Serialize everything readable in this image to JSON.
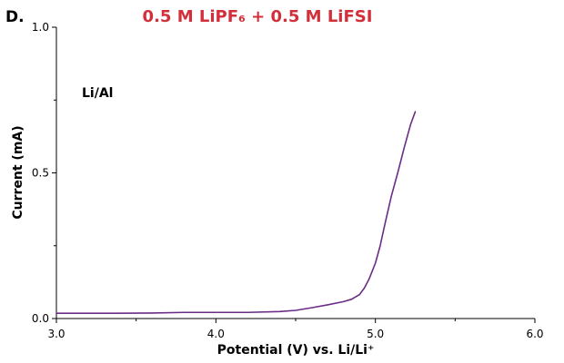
{
  "panel_label": "D.",
  "colors": {
    "title": "#d32f3a",
    "curve": "#6b2c86",
    "axis": "#000000"
  },
  "chart_data": {
    "type": "line",
    "title": "0.5 M LiPF₆ + 0.5 M LiFSI",
    "xlabel": "Potential (V) vs. Li/Li⁺",
    "ylabel": "Current (mA)",
    "xlim": [
      3.0,
      6.0
    ],
    "ylim": [
      0.0,
      1.0
    ],
    "x_ticks": [
      3.0,
      4.0,
      5.0,
      6.0
    ],
    "x_tick_labels": [
      "3.0",
      "4.0",
      "5.0",
      "6.0"
    ],
    "y_ticks": [
      0.0,
      0.5,
      1.0
    ],
    "y_tick_labels": [
      "0.0",
      "0.5",
      "1.0"
    ],
    "annotation": "Li/Al",
    "grid": false,
    "series": [
      {
        "x": [
          3.0,
          3.3,
          3.6,
          3.8,
          4.0,
          4.2,
          4.4,
          4.5,
          4.6,
          4.7,
          4.8,
          4.85,
          4.9,
          4.93,
          4.96,
          5.0,
          5.03,
          5.06,
          5.1,
          5.14,
          5.18,
          5.22,
          5.25
        ],
        "y": [
          0.018,
          0.018,
          0.019,
          0.021,
          0.021,
          0.021,
          0.024,
          0.028,
          0.037,
          0.047,
          0.058,
          0.066,
          0.082,
          0.104,
          0.135,
          0.19,
          0.25,
          0.325,
          0.42,
          0.5,
          0.585,
          0.665,
          0.71
        ]
      }
    ]
  }
}
